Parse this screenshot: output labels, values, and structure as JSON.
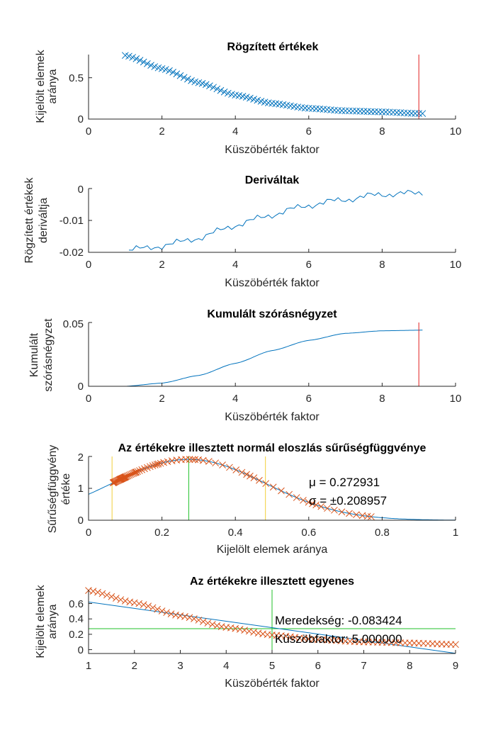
{
  "colors": {
    "blue": "#0072BD",
    "orange": "#D95319",
    "red": "#E02020",
    "green": "#22C22A",
    "yellow": "#F2D03A",
    "axis": "#262626"
  },
  "charts": {
    "recorded": {
      "title": "Rögzített értékek",
      "xlabel": "Küszöbérték faktor",
      "ylabel": [
        "Kijelölt elemek",
        "aránya"
      ],
      "xticks": [
        "0",
        "2",
        "4",
        "6",
        "8",
        "10"
      ],
      "yticks": [
        "0",
        "0.5"
      ]
    },
    "derivs": {
      "title": "Deriváltak",
      "xlabel": "Küszöbérték faktor",
      "ylabel": [
        "Rögzített értékek",
        "deriváltja"
      ],
      "xticks": [
        "0",
        "2",
        "4",
        "6",
        "8",
        "10"
      ],
      "yticks": [
        "-0.02",
        "-0.01",
        "0"
      ]
    },
    "cumvar": {
      "title": "Kumulált szórásnégyzet",
      "xlabel": "Küszöbérték faktor",
      "ylabel": [
        "Kumulált",
        "szórásnégyzet"
      ],
      "xticks": [
        "0",
        "2",
        "4",
        "6",
        "8",
        "10"
      ],
      "yticks": [
        "0",
        "0.05"
      ]
    },
    "pdf": {
      "title": "Az értékekre illesztett normál eloszlás sűrűségfüggvénye",
      "xlabel": "Kijelölt elemek aránya",
      "ylabel": [
        "Sűrűségfüggvény",
        "értéke"
      ],
      "xticks": [
        "0",
        "0.2",
        "0.4",
        "0.6",
        "0.8",
        "1"
      ],
      "yticks": [
        "0",
        "1",
        "2"
      ],
      "mu_text": "μ = 0.272931",
      "sigma_text": "σ = ±0.208957"
    },
    "fit": {
      "title": "Az értékekre illesztett egyenes",
      "xlabel": "Küszöbérték faktor",
      "ylabel": [
        "Kijelölt elemek",
        "aránya"
      ],
      "xticks": [
        "1",
        "2",
        "3",
        "4",
        "5",
        "6",
        "7",
        "8",
        "9"
      ],
      "yticks": [
        "0",
        "0.2",
        "0.4",
        "0.6"
      ],
      "slope_text": "Meredekség: -0.083424",
      "threshold_text": "Küszöbfaktor: 5.000000"
    }
  },
  "chart_data": [
    {
      "type": "scatter",
      "title": "Rögzített értékek",
      "xlabel": "Küszöbérték faktor",
      "ylabel": "Kijelölt elemek aránya",
      "xlim": [
        0,
        10
      ],
      "ylim": [
        0,
        0.78
      ],
      "series": [
        {
          "marker": "x",
          "color": "#0072BD",
          "x_range": [
            1,
            9.1
          ],
          "x_step": 0.1,
          "y_at": {
            "1": 0.77,
            "2": 0.61,
            "3": 0.44,
            "4": 0.29,
            "5": 0.19,
            "6": 0.13,
            "7": 0.1,
            "8": 0.087,
            "9": 0.067
          }
        }
      ],
      "vlines": [
        {
          "x": 9,
          "color": "#E02020"
        }
      ]
    },
    {
      "type": "line",
      "title": "Deriváltak",
      "xlabel": "Küszöbérték faktor",
      "ylabel": "Rögzített értékek deriváltja",
      "xlim": [
        0,
        10
      ],
      "ylim": [
        -0.02,
        0
      ],
      "series": [
        {
          "color": "#0072BD",
          "x_range": [
            1.1,
            9.1
          ],
          "x_step": 0.1,
          "y_at": {
            "1.1": -0.0193,
            "2": -0.018,
            "3": -0.0155,
            "4": -0.0115,
            "5": -0.0082,
            "6": -0.0052,
            "7": -0.0034,
            "8": -0.0018,
            "9.1": -0.0014
          },
          "noise_amplitude": 0.0012
        }
      ]
    },
    {
      "type": "line",
      "title": "Kumulált szórásnégyzet",
      "xlabel": "Küszöbérték faktor",
      "ylabel": "Kumulált szórásnégyzet",
      "xlim": [
        0,
        10
      ],
      "ylim": [
        0,
        0.05
      ],
      "series": [
        {
          "color": "#0072BD",
          "x_range": [
            1,
            9.1
          ],
          "y_at": {
            "1": 0,
            "2": 0.0025,
            "3": 0.0085,
            "4": 0.018,
            "5": 0.028,
            "6": 0.036,
            "7": 0.0415,
            "8": 0.0435,
            "9.1": 0.044
          }
        }
      ],
      "vlines": [
        {
          "x": 9,
          "color": "#E02020"
        }
      ]
    },
    {
      "type": "line",
      "title": "Az értékekre illesztett normál eloszlás sűrűségfüggvénye",
      "xlabel": "Kijelölt elemek aránya",
      "ylabel": "Sűrűségfüggvény értéke",
      "xlim": [
        0,
        1
      ],
      "ylim": [
        0,
        2
      ],
      "mu": 0.272931,
      "sigma": 0.208957,
      "series": [
        {
          "name": "pdf",
          "color": "#0072BD",
          "x_range": [
            0,
            1
          ]
        },
        {
          "name": "points",
          "marker": "x",
          "color": "#D95319",
          "x_range": [
            0.067,
            0.77
          ]
        }
      ],
      "vlines": [
        {
          "x": 0.064,
          "color": "#F2D03A"
        },
        {
          "x": 0.273,
          "color": "#22C22A"
        },
        {
          "x": 0.482,
          "color": "#F2D03A"
        }
      ]
    },
    {
      "type": "scatter",
      "title": "Az értékekre illesztett egyenes",
      "xlabel": "Küszöbérték faktor",
      "ylabel": "Kijelölt elemek aránya",
      "xlim": [
        1,
        9
      ],
      "ylim": [
        -0.05,
        0.78
      ],
      "series": [
        {
          "name": "points",
          "marker": "x",
          "color": "#D95319",
          "x_range": [
            1,
            9
          ],
          "x_step": 0.1,
          "y_at": {
            "1": 0.77,
            "2": 0.61,
            "3": 0.44,
            "4": 0.29,
            "5": 0.19,
            "6": 0.13,
            "7": 0.1,
            "8": 0.087,
            "9": 0.067
          }
        },
        {
          "name": "fit",
          "color": "#0072BD",
          "slope": -0.083424,
          "y_at_x1": 0.62
        }
      ],
      "vlines": [
        {
          "x": 5,
          "color": "#22C22A"
        }
      ],
      "hlines": [
        {
          "y": 0.273,
          "color": "#22C22A"
        }
      ]
    }
  ]
}
